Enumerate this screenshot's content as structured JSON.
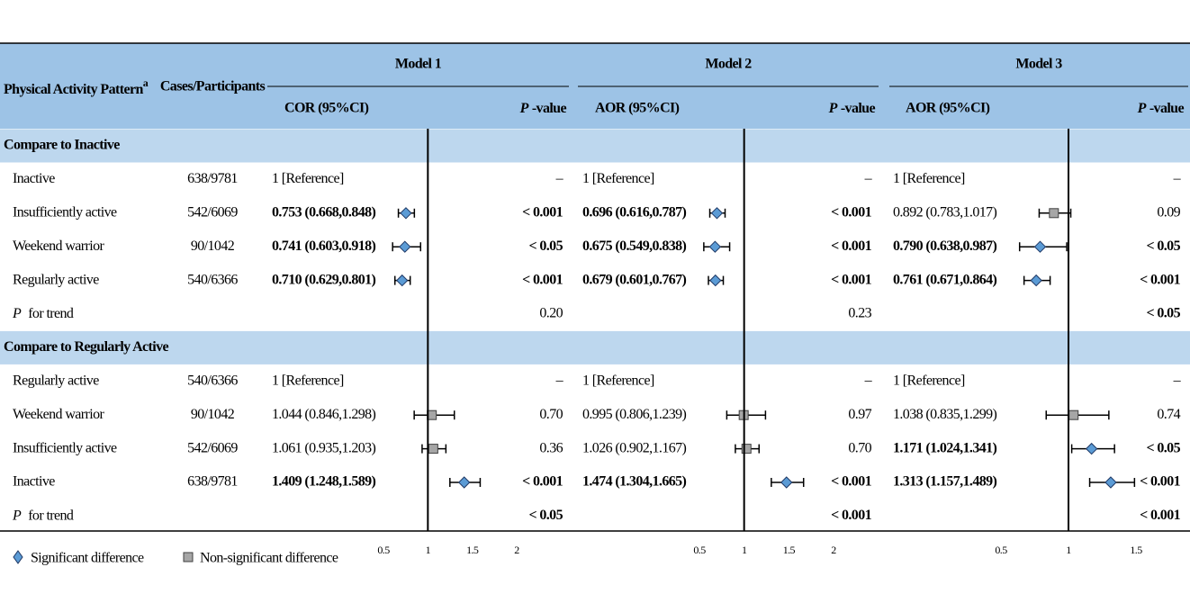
{
  "header": {
    "pattern": "Physical Activity Pattern",
    "pattern_sup": "a",
    "cases": "Cases/Participants",
    "models": [
      {
        "title": "Model 1",
        "est_header": "COR (95%CI)",
        "p_italic": "P",
        "p_rest": "-value",
        "xlim": [
          0.5,
          2
        ],
        "xticks": [
          0.5,
          1,
          1.5,
          2
        ],
        "ref_line": 1
      },
      {
        "title": "Model 2",
        "est_header": "AOR (95%CI)",
        "p_italic": "P",
        "p_rest": "-value",
        "xlim": [
          0.5,
          2
        ],
        "xticks": [
          0.5,
          1,
          1.5,
          2
        ],
        "ref_line": 1
      },
      {
        "title": "Model 3",
        "est_header": "AOR (95%CI)",
        "p_italic": "P",
        "p_rest": "-value",
        "xlim": [
          0.5,
          1.5
        ],
        "xticks": [
          0.5,
          1,
          1.5
        ],
        "ref_line": 1
      }
    ]
  },
  "sections": [
    {
      "title": "Compare to Inactive",
      "rows": [
        {
          "label": "Inactive",
          "cases": "638/9781",
          "models": [
            {
              "label": "1 [Reference]",
              "p": "–"
            },
            {
              "label": "1 [Reference]",
              "p": "–"
            },
            {
              "label": "1 [Reference]",
              "p": "–"
            }
          ]
        },
        {
          "label": "Insufficiently active",
          "cases": "542/6069",
          "models": [
            {
              "label": "0.753 (0.668,0.848)",
              "est": 0.753,
              "lo": 0.668,
              "hi": 0.848,
              "significant": true,
              "p": "< 0.001"
            },
            {
              "label": "0.696 (0.616,0.787)",
              "est": 0.696,
              "lo": 0.616,
              "hi": 0.787,
              "significant": true,
              "p": "< 0.001"
            },
            {
              "label": "0.892 (0.783,1.017)",
              "est": 0.892,
              "lo": 0.783,
              "hi": 1.017,
              "significant": false,
              "p": "0.09"
            }
          ]
        },
        {
          "label": "Weekend warrior",
          "cases": "90/1042",
          "models": [
            {
              "label": "0.741 (0.603,0.918)",
              "est": 0.741,
              "lo": 0.603,
              "hi": 0.918,
              "significant": true,
              "p": "< 0.05"
            },
            {
              "label": "0.675 (0.549,0.838)",
              "est": 0.675,
              "lo": 0.549,
              "hi": 0.838,
              "significant": true,
              "p": "< 0.001"
            },
            {
              "label": "0.790 (0.638,0.987)",
              "est": 0.79,
              "lo": 0.638,
              "hi": 0.987,
              "significant": true,
              "p": "< 0.05"
            }
          ]
        },
        {
          "label": "Regularly active",
          "cases": "540/6366",
          "models": [
            {
              "label": "0.710 (0.629,0.801)",
              "est": 0.71,
              "lo": 0.629,
              "hi": 0.801,
              "significant": true,
              "p": "< 0.001"
            },
            {
              "label": "0.679 (0.601,0.767)",
              "est": 0.679,
              "lo": 0.601,
              "hi": 0.767,
              "significant": true,
              "p": "< 0.001"
            },
            {
              "label": "0.761 (0.671,0.864)",
              "est": 0.761,
              "lo": 0.671,
              "hi": 0.864,
              "significant": true,
              "p": "< 0.001"
            }
          ]
        },
        {
          "label_italic": "P",
          "label": "for trend",
          "models": [
            {
              "p": "0.20",
              "significant": false
            },
            {
              "p": "0.23",
              "significant": false
            },
            {
              "p": "< 0.05",
              "significant": true
            }
          ]
        }
      ]
    },
    {
      "title": "Compare to Regularly Active",
      "rows": [
        {
          "label": "Regularly active",
          "cases": "540/6366",
          "models": [
            {
              "label": "1 [Reference]",
              "p": "–"
            },
            {
              "label": "1 [Reference]",
              "p": "–"
            },
            {
              "label": "1 [Reference]",
              "p": "–"
            }
          ]
        },
        {
          "label": "Weekend warrior",
          "cases": "90/1042",
          "models": [
            {
              "label": "1.044 (0.846,1.298)",
              "est": 1.044,
              "lo": 0.846,
              "hi": 1.298,
              "significant": false,
              "p": "0.70"
            },
            {
              "label": "0.995 (0.806,1.239)",
              "est": 0.995,
              "lo": 0.806,
              "hi": 1.239,
              "significant": false,
              "p": "0.97"
            },
            {
              "label": "1.038 (0.835,1.299)",
              "est": 1.038,
              "lo": 0.835,
              "hi": 1.299,
              "significant": false,
              "p": "0.74"
            }
          ]
        },
        {
          "label": "Insufficiently active",
          "cases": "542/6069",
          "models": [
            {
              "label": "1.061 (0.935,1.203)",
              "est": 1.061,
              "lo": 0.935,
              "hi": 1.203,
              "significant": false,
              "p": "0.36"
            },
            {
              "label": "1.026 (0.902,1.167)",
              "est": 1.026,
              "lo": 0.902,
              "hi": 1.167,
              "significant": false,
              "p": "0.70"
            },
            {
              "label": "1.171 (1.024,1.341)",
              "est": 1.171,
              "lo": 1.024,
              "hi": 1.341,
              "significant": true,
              "p": "< 0.05"
            }
          ]
        },
        {
          "label": "Inactive",
          "cases": "638/9781",
          "models": [
            {
              "label": "1.409 (1.248,1.589)",
              "est": 1.409,
              "lo": 1.248,
              "hi": 1.589,
              "significant": true,
              "p": "< 0.001"
            },
            {
              "label": "1.474 (1.304,1.665)",
              "est": 1.474,
              "lo": 1.304,
              "hi": 1.665,
              "significant": true,
              "p": "< 0.001"
            },
            {
              "label": "1.313 (1.157,1.489)",
              "est": 1.313,
              "lo": 1.157,
              "hi": 1.489,
              "significant": true,
              "p": "< 0.001"
            }
          ]
        },
        {
          "label_italic": "P",
          "label": "for trend",
          "models": [
            {
              "p": "< 0.05",
              "significant": true
            },
            {
              "p": "< 0.001",
              "significant": true
            },
            {
              "p": "< 0.001",
              "significant": true
            }
          ]
        }
      ]
    }
  ],
  "legend": {
    "significant": "Significant difference",
    "non_significant": "Non-significant difference"
  }
}
